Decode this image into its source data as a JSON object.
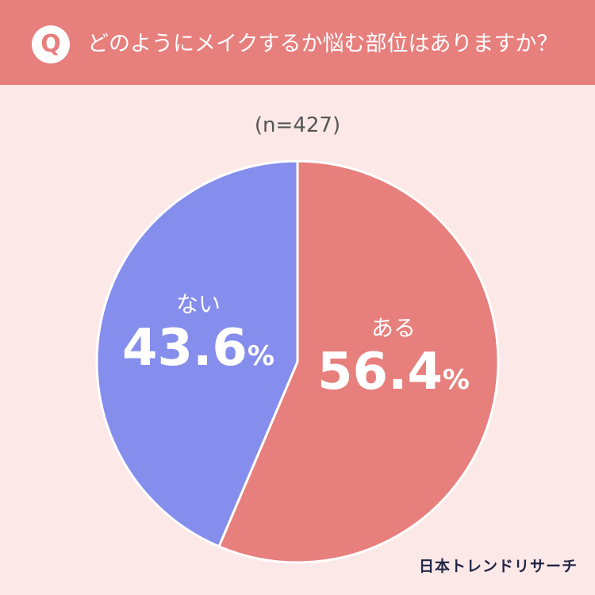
{
  "header": {
    "badge": "Q",
    "question": "どのようにメイクするか悩む部位はありますか？"
  },
  "sample_note": "(n=427)",
  "brand": "日本トレンドリサーチ",
  "colors": {
    "header": "#e77f7d",
    "background": "#fde8e8",
    "aru": "#e77f7d",
    "nai": "#858ded"
  },
  "chart_data": {
    "type": "pie",
    "categories": [
      "ある",
      "ない"
    ],
    "values": [
      56.4,
      43.6
    ],
    "unit": "%",
    "n": 427
  }
}
